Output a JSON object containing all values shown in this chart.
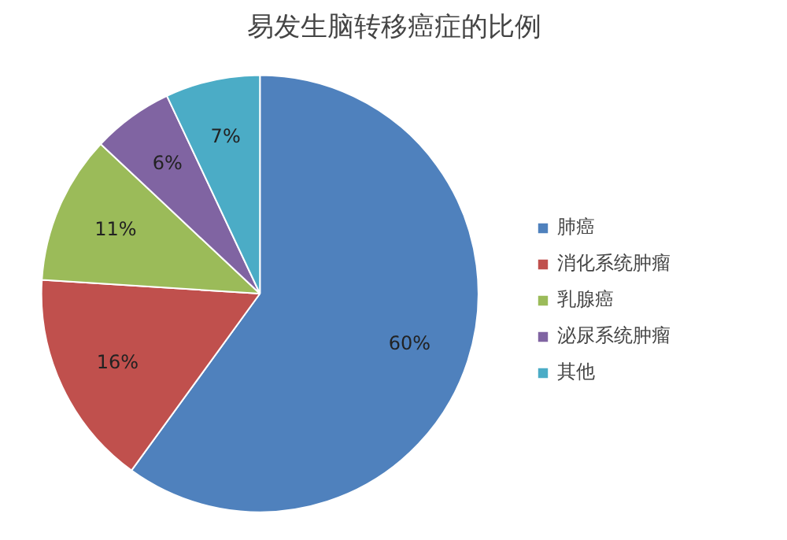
{
  "chart_data": {
    "type": "pie",
    "title": "易发生脑转移癌症的比例",
    "categories": [
      "肺癌",
      "消化系统肿瘤",
      "乳腺癌",
      "泌尿系统肿瘤",
      "其他"
    ],
    "values": [
      60,
      16,
      11,
      6,
      7
    ],
    "value_labels": [
      "60%",
      "16%",
      "11%",
      "6%",
      "7%"
    ],
    "colors": [
      "#4f81bd",
      "#c0504d",
      "#9bbb59",
      "#8064a2",
      "#4bacc6"
    ],
    "legend": "right"
  }
}
